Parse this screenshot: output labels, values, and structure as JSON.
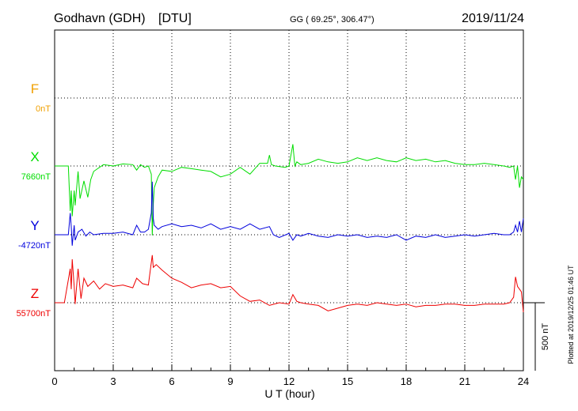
{
  "header": {
    "station": "Godhavn (GDH)",
    "agency": "[DTU]",
    "coords": "GG ( 69.25°, 306.47°)",
    "date": "2019/11/24"
  },
  "footer": {
    "plotted": "Plotted at 2019/12/25 01:46 UT"
  },
  "colors": {
    "F": "#f0a000",
    "X": "#00dd00",
    "Y": "#0000dd",
    "Z": "#ee0000"
  },
  "chart_data": {
    "type": "line",
    "title": "",
    "xlabel": "U T (hour)",
    "ylabel": "",
    "xlim": [
      0,
      24
    ],
    "xticks": [
      0,
      3,
      6,
      9,
      12,
      15,
      18,
      21,
      24
    ],
    "scale_bar": {
      "label": "500 nT",
      "value_nT": 500
    },
    "grid": true,
    "series": [
      {
        "name": "F",
        "baseline_label": "0nT",
        "baseline_nT": 0,
        "x": [],
        "y": []
      },
      {
        "name": "X",
        "baseline_label": "7660nT",
        "baseline_nT": 7660,
        "x": [
          0,
          0.7,
          0.8,
          0.85,
          0.9,
          1.0,
          1.05,
          1.2,
          1.3,
          1.5,
          1.7,
          1.85,
          2.0,
          2.2,
          2.5,
          3.0,
          3.5,
          4.0,
          4.2,
          4.4,
          4.6,
          4.8,
          4.95,
          5.0,
          5.05,
          5.1,
          5.3,
          5.5,
          6.0,
          6.5,
          7.0,
          7.5,
          8.0,
          8.5,
          9.0,
          9.5,
          10.0,
          10.5,
          10.9,
          11.0,
          11.1,
          11.3,
          11.8,
          12.0,
          12.2,
          12.3,
          12.4,
          12.6,
          13.0,
          13.5,
          14.0,
          14.5,
          15.0,
          15.5,
          16.0,
          16.5,
          17.0,
          17.5,
          18.0,
          18.5,
          19.0,
          19.5,
          20.0,
          20.5,
          21.0,
          21.5,
          22.0,
          22.5,
          23.0,
          23.3,
          23.5,
          23.6,
          23.7,
          23.8,
          23.9,
          24.0
        ],
        "y": [
          7660,
          7660,
          7330,
          7480,
          7290,
          7480,
          7370,
          7620,
          7420,
          7550,
          7430,
          7560,
          7620,
          7640,
          7670,
          7660,
          7675,
          7670,
          7630,
          7670,
          7650,
          7660,
          7600,
          7150,
          7380,
          7500,
          7580,
          7630,
          7620,
          7650,
          7640,
          7630,
          7620,
          7580,
          7600,
          7650,
          7600,
          7680,
          7680,
          7740,
          7670,
          7660,
          7650,
          7660,
          7820,
          7660,
          7690,
          7670,
          7680,
          7710,
          7690,
          7680,
          7690,
          7720,
          7700,
          7720,
          7700,
          7690,
          7720,
          7700,
          7710,
          7690,
          7700,
          7680,
          7670,
          7670,
          7680,
          7670,
          7660,
          7650,
          7660,
          7560,
          7660,
          7500,
          7580,
          7560
        ]
      },
      {
        "name": "Y",
        "baseline_label": "-4720nT",
        "baseline_nT": -4720,
        "x": [
          0,
          0.7,
          0.8,
          0.85,
          0.9,
          1.0,
          1.05,
          1.2,
          1.4,
          1.6,
          1.8,
          2.0,
          2.5,
          3.0,
          3.5,
          4.0,
          4.2,
          4.4,
          4.6,
          4.8,
          4.95,
          5.0,
          5.05,
          5.1,
          5.3,
          5.5,
          6.0,
          6.5,
          7.0,
          7.5,
          8.0,
          8.5,
          9.0,
          9.5,
          10.0,
          10.5,
          11.0,
          11.2,
          11.5,
          12.0,
          12.2,
          12.4,
          12.6,
          13.0,
          13.5,
          14.0,
          14.5,
          15.0,
          15.5,
          16.0,
          16.5,
          17.0,
          17.5,
          18.0,
          18.5,
          19.0,
          19.5,
          20.0,
          20.5,
          21.0,
          21.5,
          22.0,
          22.5,
          23.0,
          23.3,
          23.5,
          23.6,
          23.7,
          23.8,
          23.9,
          24.0
        ],
        "y": [
          -4720,
          -4720,
          -4560,
          -4660,
          -4800,
          -4650,
          -4760,
          -4700,
          -4680,
          -4730,
          -4700,
          -4720,
          -4710,
          -4710,
          -4700,
          -4720,
          -4650,
          -4700,
          -4700,
          -4680,
          -4560,
          -4330,
          -4600,
          -4650,
          -4680,
          -4660,
          -4640,
          -4660,
          -4650,
          -4670,
          -4640,
          -4680,
          -4660,
          -4680,
          -4640,
          -4680,
          -4660,
          -4720,
          -4740,
          -4710,
          -4760,
          -4720,
          -4730,
          -4710,
          -4730,
          -4740,
          -4720,
          -4730,
          -4720,
          -4740,
          -4730,
          -4740,
          -4720,
          -4760,
          -4730,
          -4740,
          -4720,
          -4740,
          -4730,
          -4720,
          -4730,
          -4720,
          -4710,
          -4720,
          -4720,
          -4700,
          -4650,
          -4700,
          -4620,
          -4700,
          -4600
        ]
      },
      {
        "name": "Z",
        "baseline_label": "55700nT",
        "baseline_nT": 55700,
        "x": [
          0,
          0.5,
          0.8,
          0.85,
          0.9,
          1.0,
          1.05,
          1.2,
          1.35,
          1.5,
          1.7,
          2.0,
          2.3,
          2.6,
          3.0,
          3.5,
          4.0,
          4.2,
          4.5,
          4.8,
          5.0,
          5.05,
          5.2,
          5.5,
          6.0,
          6.5,
          7.0,
          7.5,
          8.0,
          8.5,
          9.0,
          9.5,
          10.0,
          10.5,
          11.0,
          11.5,
          12.0,
          12.2,
          12.4,
          12.6,
          13.0,
          13.5,
          14.0,
          14.5,
          15.0,
          15.5,
          16.0,
          16.5,
          17.0,
          17.5,
          18.0,
          18.5,
          19.0,
          19.5,
          20.0,
          20.5,
          21.0,
          21.5,
          22.0,
          22.5,
          23.0,
          23.3,
          23.5,
          23.6,
          23.7,
          23.8,
          23.9,
          24.0
        ],
        "y": [
          55700,
          55700,
          55950,
          55800,
          56020,
          55820,
          55690,
          55950,
          55730,
          55880,
          55820,
          55860,
          55800,
          55840,
          55820,
          55830,
          55810,
          55880,
          55840,
          55830,
          56050,
          55960,
          55980,
          55940,
          55880,
          55850,
          55810,
          55830,
          55840,
          55810,
          55820,
          55750,
          55710,
          55720,
          55680,
          55700,
          55690,
          55760,
          55710,
          55700,
          55690,
          55680,
          55640,
          55660,
          55680,
          55690,
          55680,
          55700,
          55690,
          55680,
          55690,
          55670,
          55680,
          55680,
          55690,
          55690,
          55680,
          55680,
          55690,
          55690,
          55690,
          55700,
          55740,
          55890,
          55820,
          55800,
          55780,
          55630
        ]
      }
    ]
  }
}
